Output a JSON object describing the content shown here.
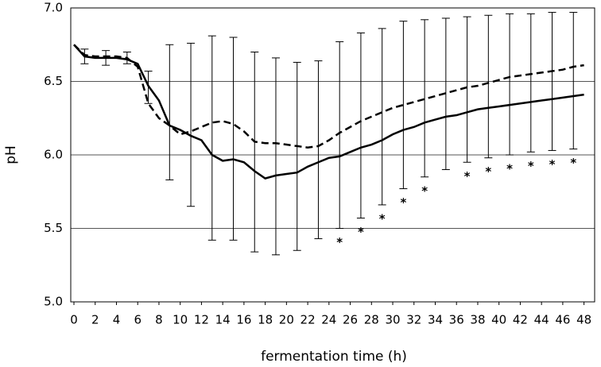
{
  "chart_data": {
    "type": "line",
    "x_label": "fermentation time (h)",
    "y_label": "pH",
    "x": [
      0,
      1,
      2,
      3,
      4,
      5,
      6,
      7,
      8,
      9,
      10,
      11,
      12,
      13,
      14,
      15,
      16,
      17,
      18,
      19,
      20,
      21,
      22,
      23,
      24,
      25,
      26,
      27,
      28,
      29,
      30,
      31,
      32,
      33,
      34,
      35,
      36,
      37,
      38,
      39,
      40,
      41,
      42,
      43,
      44,
      45,
      46,
      47,
      48
    ],
    "series": [
      {
        "color": "#000000",
        "dash": false,
        "values": [
          6.75,
          6.67,
          6.66,
          6.66,
          6.66,
          6.65,
          6.62,
          6.47,
          6.37,
          6.2,
          6.17,
          6.13,
          6.1,
          6.0,
          5.96,
          5.97,
          5.95,
          5.89,
          5.84,
          5.86,
          5.87,
          5.88,
          5.92,
          5.95,
          5.98,
          5.99,
          6.02,
          6.05,
          6.07,
          6.1,
          6.14,
          6.17,
          6.19,
          6.22,
          6.24,
          6.26,
          6.27,
          6.29,
          6.31,
          6.32,
          6.33,
          6.34,
          6.35,
          6.36,
          6.37,
          6.38,
          6.39,
          6.4,
          6.41
        ]
      },
      {
        "color": "#000000",
        "dash": true,
        "values": [
          6.75,
          6.68,
          6.67,
          6.67,
          6.67,
          6.66,
          6.6,
          6.35,
          6.25,
          6.2,
          6.14,
          6.16,
          6.19,
          6.22,
          6.23,
          6.21,
          6.16,
          6.09,
          6.08,
          6.08,
          6.07,
          6.06,
          6.05,
          6.06,
          6.1,
          6.15,
          6.19,
          6.23,
          6.26,
          6.29,
          6.32,
          6.34,
          6.36,
          6.38,
          6.4,
          6.42,
          6.44,
          6.46,
          6.47,
          6.49,
          6.51,
          6.53,
          6.54,
          6.55,
          6.56,
          6.57,
          6.58,
          6.6,
          6.61
        ]
      }
    ],
    "error_bars": {
      "x": [
        1,
        3,
        5,
        7,
        9,
        11,
        13,
        15,
        17,
        19,
        21,
        23,
        25,
        27,
        29,
        31,
        33,
        35,
        37,
        39,
        41,
        43,
        45,
        47
      ],
      "upper": [
        6.72,
        6.71,
        6.7,
        6.57,
        6.75,
        6.76,
        6.81,
        6.8,
        6.7,
        6.66,
        6.63,
        6.64,
        6.77,
        6.83,
        6.86,
        6.91,
        6.92,
        6.93,
        6.94,
        6.95,
        6.96,
        6.96,
        6.97,
        6.97
      ],
      "lower": [
        6.62,
        6.61,
        6.62,
        6.35,
        5.83,
        5.65,
        5.42,
        5.42,
        5.34,
        5.32,
        5.35,
        5.43,
        5.5,
        5.57,
        5.66,
        5.77,
        5.85,
        5.9,
        5.95,
        5.98,
        6.0,
        6.02,
        6.03,
        6.04
      ]
    },
    "annotations": [
      {
        "text": "*",
        "x": 25
      },
      {
        "text": "*",
        "x": 27
      },
      {
        "text": "*",
        "x": 29
      },
      {
        "text": "*",
        "x": 31
      },
      {
        "text": "*",
        "x": 33
      },
      {
        "text": "*",
        "x": 37
      },
      {
        "text": "*",
        "x": 39
      },
      {
        "text": "*",
        "x": 41
      },
      {
        "text": "*",
        "x": 43
      },
      {
        "text": "*",
        "x": 45
      },
      {
        "text": "*",
        "x": 47
      }
    ],
    "xlim": [
      -0.3,
      49
    ],
    "ylim": [
      5.0,
      7.0
    ],
    "xticks": [
      0,
      2,
      4,
      6,
      8,
      10,
      12,
      14,
      16,
      18,
      20,
      22,
      24,
      26,
      28,
      30,
      32,
      34,
      36,
      38,
      40,
      42,
      44,
      46,
      48
    ],
    "yticks": [
      {
        "value": 5.0,
        "label": "5.0"
      },
      {
        "value": 5.5,
        "label": "5.5"
      },
      {
        "value": 6.0,
        "label": "6.0"
      },
      {
        "value": 6.5,
        "label": "6.5"
      },
      {
        "value": 7.0,
        "label": "7.0"
      }
    ],
    "grid": true
  }
}
